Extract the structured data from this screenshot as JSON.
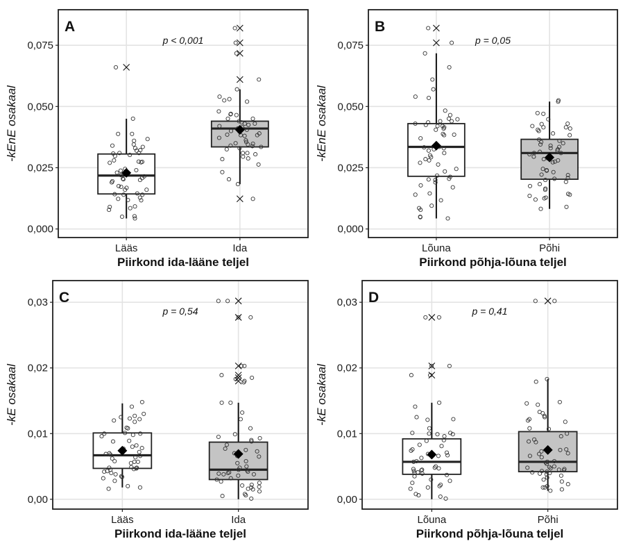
{
  "figure": {
    "description": "Four-panel box plot with jittered points, mean diamonds and outlier crosses"
  },
  "chart_data": [
    {
      "panel": "A",
      "type": "box",
      "title": "",
      "annotation": "p < 0,001",
      "xlabel": "Piirkond ida-lääne teljel",
      "ylabel": "-kEnE osakaal",
      "ylim": [
        -0.0035,
        0.0895
      ],
      "yticks": [
        0.0,
        0.025,
        0.05,
        0.075
      ],
      "ytick_labels": [
        "0,000",
        "0,025",
        "0,050",
        "0,075"
      ],
      "grid": true,
      "categories": [
        "Lääs",
        "Ida"
      ],
      "groups": [
        {
          "name": "Lääs",
          "fill": "#ffffff",
          "q1": 0.0143,
          "median": 0.0218,
          "q3": 0.0306,
          "mean": 0.0229,
          "whisker_low": 0.0043,
          "whisker_high": 0.045,
          "outliers": [
            0.066
          ],
          "points": [
            0.045,
            0.0388,
            0.0388,
            0.0367,
            0.036,
            0.0345,
            0.034,
            0.0335,
            0.033,
            0.0322,
            0.032,
            0.031,
            0.031,
            0.0308,
            0.0302,
            0.0298,
            0.028,
            0.0275,
            0.0274,
            0.0272,
            0.027,
            0.0245,
            0.024,
            0.0238,
            0.023,
            0.022,
            0.0215,
            0.0208,
            0.0205,
            0.0203,
            0.02,
            0.0195,
            0.019,
            0.0175,
            0.0172,
            0.0168,
            0.016,
            0.016,
            0.0145,
            0.0142,
            0.014,
            0.014,
            0.0128,
            0.0123,
            0.0118,
            0.0117,
            0.0092,
            0.009,
            0.0085,
            0.0078,
            0.0052,
            0.005,
            0.0043,
            0.066
          ]
        },
        {
          "name": "Ida",
          "fill": "#c4c4c4",
          "q1": 0.0335,
          "median": 0.041,
          "q3": 0.044,
          "mean": 0.0405,
          "whisker_low": 0.0183,
          "whisker_high": 0.057,
          "outliers": [
            0.082,
            0.076,
            0.0717,
            0.061,
            0.0123
          ],
          "points": [
            0.082,
            0.076,
            0.0717,
            0.061,
            0.057,
            0.054,
            0.053,
            0.0525,
            0.052,
            0.048,
            0.047,
            0.0468,
            0.0465,
            0.045,
            0.045,
            0.044,
            0.0435,
            0.043,
            0.043,
            0.0425,
            0.042,
            0.0415,
            0.041,
            0.0408,
            0.0405,
            0.04,
            0.0398,
            0.039,
            0.0385,
            0.0383,
            0.0383,
            0.038,
            0.0372,
            0.0362,
            0.0355,
            0.035,
            0.0348,
            0.0345,
            0.034,
            0.0338,
            0.0335,
            0.033,
            0.0325,
            0.031,
            0.031,
            0.0305,
            0.0295,
            0.0288,
            0.0285,
            0.0263,
            0.0232,
            0.0203,
            0.0183,
            0.0123
          ]
        }
      ]
    },
    {
      "panel": "B",
      "type": "box",
      "title": "",
      "annotation": "p = 0,05",
      "xlabel": "Piirkond põhja-lõuna teljel",
      "ylabel": "-kEnE osakaal",
      "ylim": [
        -0.0035,
        0.0895
      ],
      "yticks": [
        0.0,
        0.025,
        0.05,
        0.075
      ],
      "ytick_labels": [
        "0,000",
        "0,025",
        "0,050",
        "0,075"
      ],
      "grid": true,
      "categories": [
        "Lõuna",
        "Põhi"
      ],
      "groups": [
        {
          "name": "Lõuna",
          "fill": "#ffffff",
          "q1": 0.0215,
          "median": 0.0335,
          "q3": 0.043,
          "mean": 0.034,
          "whisker_low": 0.0043,
          "whisker_high": 0.0717,
          "outliers": [
            0.082,
            0.076
          ],
          "points": [
            0.082,
            0.076,
            0.0717,
            0.066,
            0.061,
            0.057,
            0.054,
            0.0535,
            0.0483,
            0.0465,
            0.045,
            0.0448,
            0.044,
            0.044,
            0.0435,
            0.043,
            0.0425,
            0.042,
            0.042,
            0.0415,
            0.041,
            0.0405,
            0.0388,
            0.0385,
            0.0383,
            0.037,
            0.0335,
            0.0333,
            0.033,
            0.0325,
            0.032,
            0.031,
            0.03,
            0.0293,
            0.0285,
            0.028,
            0.027,
            0.0263,
            0.0245,
            0.0235,
            0.0218,
            0.0213,
            0.0205,
            0.0202,
            0.02,
            0.019,
            0.0178,
            0.017,
            0.0145,
            0.014,
            0.0117,
            0.0095,
            0.0085,
            0.0078,
            0.005,
            0.0048,
            0.0043
          ]
        },
        {
          "name": "Põhi",
          "fill": "#c4c4c4",
          "q1": 0.0203,
          "median": 0.031,
          "q3": 0.0366,
          "mean": 0.0292,
          "whisker_low": 0.0082,
          "whisker_high": 0.052,
          "outliers": [],
          "points": [
            0.0525,
            0.052,
            0.047,
            0.0473,
            0.0448,
            0.043,
            0.0428,
            0.042,
            0.0415,
            0.0415,
            0.041,
            0.0405,
            0.04,
            0.039,
            0.0383,
            0.0365,
            0.036,
            0.0355,
            0.035,
            0.0345,
            0.034,
            0.0335,
            0.033,
            0.0325,
            0.032,
            0.0315,
            0.031,
            0.031,
            0.0305,
            0.0295,
            0.029,
            0.0288,
            0.0285,
            0.028,
            0.0275,
            0.0272,
            0.0245,
            0.024,
            0.0238,
            0.0232,
            0.0222,
            0.022,
            0.0208,
            0.0205,
            0.02,
            0.0192,
            0.0183,
            0.0175,
            0.0165,
            0.016,
            0.0143,
            0.014,
            0.0135,
            0.0128,
            0.0125,
            0.012,
            0.009,
            0.0082
          ]
        }
      ]
    },
    {
      "panel": "C",
      "type": "box",
      "title": "",
      "annotation": "p = 0,54",
      "xlabel": "Piirkond ida-lääne teljel",
      "ylabel": "-kE osakaal",
      "ylim": [
        -0.0015,
        0.0333
      ],
      "yticks": [
        0.0,
        0.01,
        0.02,
        0.03
      ],
      "ytick_labels": [
        "0,00",
        "0,01",
        "0,02",
        "0,03"
      ],
      "grid": true,
      "categories": [
        "Lääs",
        "Ida"
      ],
      "groups": [
        {
          "name": "Lääs",
          "fill": "#ffffff",
          "q1": 0.0047,
          "median": 0.0067,
          "q3": 0.0101,
          "mean": 0.0074,
          "whisker_low": 0.0018,
          "whisker_high": 0.0146,
          "outliers": [],
          "points": [
            0.0148,
            0.0141,
            0.013,
            0.0127,
            0.0125,
            0.0123,
            0.0122,
            0.012,
            0.0118,
            0.0109,
            0.0108,
            0.0101,
            0.01,
            0.01,
            0.0098,
            0.0096,
            0.0089,
            0.0088,
            0.0082,
            0.008,
            0.0078,
            0.0077,
            0.0072,
            0.007,
            0.0069,
            0.0068,
            0.0066,
            0.0064,
            0.0062,
            0.0058,
            0.0057,
            0.0057,
            0.0055,
            0.0049,
            0.0048,
            0.0048,
            0.0047,
            0.0046,
            0.0045,
            0.0043,
            0.0042,
            0.004,
            0.0038,
            0.0035,
            0.0034,
            0.0032,
            0.0028,
            0.002,
            0.0018,
            0.0016
          ]
        },
        {
          "name": "Ida",
          "fill": "#c4c4c4",
          "q1": 0.003,
          "median": 0.0045,
          "q3": 0.0087,
          "mean": 0.0069,
          "whisker_low": 0.0,
          "whisker_high": 0.0147,
          "outliers": [
            0.0302,
            0.0277,
            0.0203,
            0.0189,
            0.0185,
            0.018
          ],
          "points": [
            0.0302,
            0.0302,
            0.0277,
            0.0277,
            0.0203,
            0.0203,
            0.0189,
            0.0185,
            0.0183,
            0.018,
            0.0178,
            0.0147,
            0.0147,
            0.0132,
            0.0122,
            0.0108,
            0.0099,
            0.0095,
            0.0093,
            0.009,
            0.0088,
            0.0083,
            0.0077,
            0.0075,
            0.0073,
            0.007,
            0.0066,
            0.0065,
            0.0058,
            0.0055,
            0.005,
            0.0048,
            0.0045,
            0.0044,
            0.0042,
            0.0041,
            0.004,
            0.0039,
            0.0038,
            0.0038,
            0.0036,
            0.0032,
            0.003,
            0.0027,
            0.0025,
            0.0022,
            0.0021,
            0.0019,
            0.0018,
            0.0016,
            0.0015,
            0.0012,
            0.0008,
            0.0006,
            0.0005,
            0.0001
          ]
        }
      ]
    },
    {
      "panel": "D",
      "type": "box",
      "title": "",
      "annotation": "p = 0,41",
      "xlabel": "Piirkond põhja-lõuna teljel",
      "ylabel": "-kE osakaal",
      "ylim": [
        -0.0015,
        0.0333
      ],
      "yticks": [
        0.0,
        0.01,
        0.02,
        0.03
      ],
      "ytick_labels": [
        "0,00",
        "0,01",
        "0,02",
        "0,03"
      ],
      "grid": true,
      "categories": [
        "Lõuna",
        "Põhi"
      ],
      "groups": [
        {
          "name": "Lõuna",
          "fill": "#ffffff",
          "q1": 0.0038,
          "median": 0.0057,
          "q3": 0.0092,
          "mean": 0.0068,
          "whisker_low": 0.0,
          "whisker_high": 0.0147,
          "outliers": [
            0.0277,
            0.0203,
            0.0189
          ],
          "points": [
            0.0277,
            0.0277,
            0.0203,
            0.0203,
            0.0189,
            0.0189,
            0.0147,
            0.0141,
            0.0125,
            0.0122,
            0.0121,
            0.0108,
            0.0101,
            0.0101,
            0.01,
            0.0099,
            0.0099,
            0.0096,
            0.009,
            0.0089,
            0.0083,
            0.0081,
            0.0076,
            0.0074,
            0.0071,
            0.0069,
            0.0067,
            0.0066,
            0.0063,
            0.0058,
            0.0057,
            0.005,
            0.0048,
            0.0047,
            0.0046,
            0.0045,
            0.0044,
            0.0043,
            0.0041,
            0.004,
            0.0039,
            0.0037,
            0.0035,
            0.003,
            0.0028,
            0.0025,
            0.0022,
            0.002,
            0.0018,
            0.0016,
            0.0008,
            0.0006,
            0.0004,
            0.0001
          ]
        },
        {
          "name": "Põhi",
          "fill": "#c4c4c4",
          "q1": 0.0042,
          "median": 0.0057,
          "q3": 0.0103,
          "mean": 0.0075,
          "whisker_low": 0.0013,
          "whisker_high": 0.0183,
          "outliers": [
            0.0302
          ],
          "points": [
            0.0302,
            0.0302,
            0.0183,
            0.0179,
            0.0148,
            0.0146,
            0.0144,
            0.0133,
            0.0131,
            0.0127,
            0.0125,
            0.0122,
            0.012,
            0.0118,
            0.0108,
            0.0107,
            0.01,
            0.0096,
            0.0091,
            0.0088,
            0.0087,
            0.0076,
            0.0075,
            0.0073,
            0.007,
            0.0069,
            0.0066,
            0.0064,
            0.0058,
            0.0057,
            0.0056,
            0.0054,
            0.005,
            0.0049,
            0.0048,
            0.0047,
            0.0046,
            0.0045,
            0.0044,
            0.0043,
            0.0042,
            0.0041,
            0.004,
            0.0039,
            0.0038,
            0.0036,
            0.0033,
            0.003,
            0.0027,
            0.0023,
            0.002,
            0.0018,
            0.0018,
            0.0015,
            0.0013
          ]
        }
      ]
    }
  ]
}
